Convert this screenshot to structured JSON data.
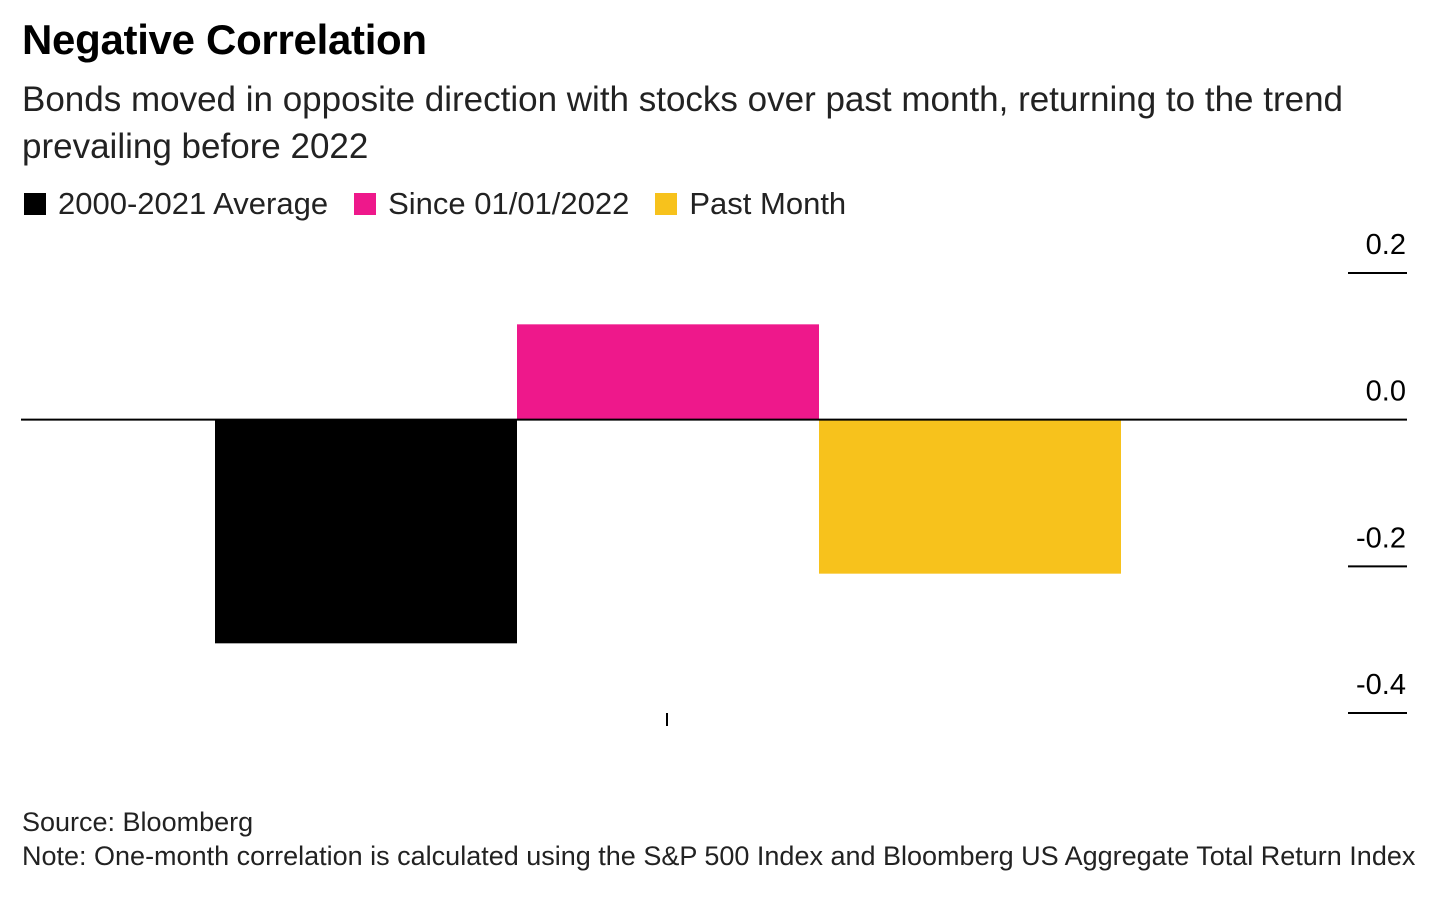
{
  "title": "Negative Correlation",
  "subtitle": "Bonds moved in opposite direction with stocks over past month, returning to the trend prevailing before 2022",
  "legend": [
    {
      "label": "2000-2021 Average",
      "color": "#000000"
    },
    {
      "label": "Since 01/01/2022",
      "color": "#ee188b"
    },
    {
      "label": "Past Month",
      "color": "#f7c21c"
    }
  ],
  "chart_data": {
    "type": "bar",
    "categories": [
      "2000-2021 Average",
      "Since 01/01/2022",
      "Past Month"
    ],
    "values": [
      -0.305,
      0.13,
      -0.21
    ],
    "colors": [
      "#000000",
      "#ee188b",
      "#f7c21c"
    ],
    "ylim": [
      -0.4,
      0.2
    ],
    "yticks": [
      0.2,
      0.0,
      -0.2,
      -0.4
    ],
    "ytick_labels": [
      "0.2",
      "0.0",
      "-0.2",
      "-0.4"
    ],
    "yaxis_position": "right",
    "grid": false
  },
  "footer": {
    "source": "Source: Bloomberg",
    "note": "Note: One-month correlation is calculated using the S&P 500 Index and Bloomberg US Aggregate Total Return Index"
  }
}
